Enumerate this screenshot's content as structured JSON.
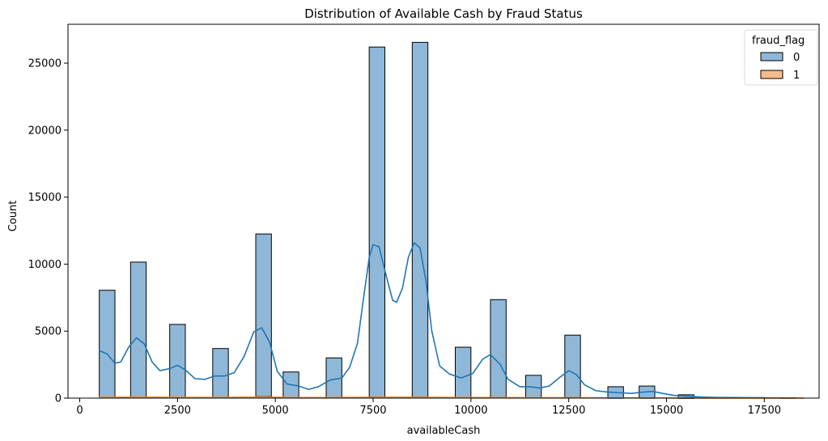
{
  "chart_data": {
    "type": "bar",
    "title": "Distribution of Available Cash by Fraud Status",
    "xlabel": "availableCash",
    "ylabel": "Count",
    "xlim": [
      -300,
      18900
    ],
    "ylim": [
      0,
      27900
    ],
    "xticks": [
      0,
      2500,
      5000,
      7500,
      10000,
      12500,
      15000,
      17500
    ],
    "yticks": [
      0,
      5000,
      10000,
      15000,
      20000,
      25000
    ],
    "bin_width": 400,
    "legend": {
      "title": "fraud_flag",
      "position": "top-right",
      "entries": [
        "0",
        "1"
      ]
    },
    "series": [
      {
        "name": "0",
        "color": "#8fb8d8",
        "edge_color": "#000000",
        "kde_color": "#1f77b4",
        "bins": [
          {
            "start": 500,
            "end": 900,
            "count": 8050
          },
          {
            "start": 1300,
            "end": 1700,
            "count": 10150
          },
          {
            "start": 2300,
            "end": 2700,
            "count": 5500
          },
          {
            "start": 3400,
            "end": 3800,
            "count": 3700
          },
          {
            "start": 4500,
            "end": 4900,
            "count": 12250
          },
          {
            "start": 5200,
            "end": 5600,
            "count": 1950
          },
          {
            "start": 6300,
            "end": 6700,
            "count": 3000
          },
          {
            "start": 7400,
            "end": 7800,
            "count": 26200
          },
          {
            "start": 8500,
            "end": 8900,
            "count": 26550
          },
          {
            "start": 9600,
            "end": 10000,
            "count": 3800
          },
          {
            "start": 10500,
            "end": 10900,
            "count": 7350
          },
          {
            "start": 11400,
            "end": 11800,
            "count": 1700
          },
          {
            "start": 12400,
            "end": 12800,
            "count": 4700
          },
          {
            "start": 13500,
            "end": 13900,
            "count": 850
          },
          {
            "start": 14300,
            "end": 14700,
            "count": 900
          },
          {
            "start": 15300,
            "end": 15700,
            "count": 250
          },
          {
            "start": 16100,
            "end": 16500,
            "count": 30
          },
          {
            "start": 17100,
            "end": 17500,
            "count": 40
          },
          {
            "start": 17900,
            "end": 18300,
            "count": 20
          }
        ],
        "kde": [
          [
            500,
            3550
          ],
          [
            700,
            3300
          ],
          [
            900,
            2600
          ],
          [
            1050,
            2700
          ],
          [
            1250,
            3800
          ],
          [
            1450,
            4500
          ],
          [
            1650,
            4050
          ],
          [
            1850,
            2700
          ],
          [
            2050,
            2050
          ],
          [
            2300,
            2200
          ],
          [
            2500,
            2450
          ],
          [
            2700,
            2100
          ],
          [
            2950,
            1450
          ],
          [
            3200,
            1400
          ],
          [
            3450,
            1650
          ],
          [
            3700,
            1650
          ],
          [
            3950,
            1900
          ],
          [
            4200,
            3100
          ],
          [
            4450,
            4950
          ],
          [
            4650,
            5250
          ],
          [
            4850,
            4200
          ],
          [
            5050,
            2000
          ],
          [
            5300,
            1050
          ],
          [
            5600,
            900
          ],
          [
            5850,
            650
          ],
          [
            6100,
            850
          ],
          [
            6400,
            1350
          ],
          [
            6700,
            1500
          ],
          [
            6900,
            2300
          ],
          [
            7100,
            4100
          ],
          [
            7250,
            7350
          ],
          [
            7400,
            10500
          ],
          [
            7500,
            11450
          ],
          [
            7650,
            11300
          ],
          [
            7850,
            8950
          ],
          [
            8000,
            7300
          ],
          [
            8100,
            7150
          ],
          [
            8250,
            8200
          ],
          [
            8400,
            10500
          ],
          [
            8550,
            11600
          ],
          [
            8700,
            11200
          ],
          [
            8850,
            8750
          ],
          [
            9000,
            5000
          ],
          [
            9200,
            2400
          ],
          [
            9450,
            1800
          ],
          [
            9750,
            1500
          ],
          [
            10050,
            1850
          ],
          [
            10300,
            2900
          ],
          [
            10500,
            3250
          ],
          [
            10750,
            2500
          ],
          [
            10950,
            1400
          ],
          [
            11250,
            850
          ],
          [
            11500,
            850
          ],
          [
            11750,
            750
          ],
          [
            12000,
            900
          ],
          [
            12250,
            1500
          ],
          [
            12500,
            2050
          ],
          [
            12700,
            1750
          ],
          [
            12900,
            1000
          ],
          [
            13200,
            550
          ],
          [
            13500,
            450
          ],
          [
            13800,
            400
          ],
          [
            14100,
            350
          ],
          [
            14400,
            450
          ],
          [
            14650,
            500
          ],
          [
            14900,
            350
          ],
          [
            15200,
            200
          ],
          [
            15500,
            150
          ],
          [
            15900,
            80
          ],
          [
            16300,
            50
          ],
          [
            16800,
            40
          ],
          [
            17300,
            30
          ],
          [
            17800,
            20
          ],
          [
            18300,
            10
          ]
        ]
      },
      {
        "name": "1",
        "color": "#f7bb8c",
        "edge_color": "#000000",
        "kde_color": "#ff7f0e",
        "bins": [
          {
            "start": 500,
            "end": 900,
            "count": 60
          },
          {
            "start": 1300,
            "end": 1700,
            "count": 80
          },
          {
            "start": 2300,
            "end": 2700,
            "count": 60
          },
          {
            "start": 3400,
            "end": 3800,
            "count": 50
          },
          {
            "start": 4500,
            "end": 4900,
            "count": 110
          },
          {
            "start": 5200,
            "end": 5600,
            "count": 40
          },
          {
            "start": 6300,
            "end": 6700,
            "count": 50
          },
          {
            "start": 7400,
            "end": 7800,
            "count": 80
          },
          {
            "start": 8500,
            "end": 8900,
            "count": 80
          },
          {
            "start": 9600,
            "end": 10000,
            "count": 40
          },
          {
            "start": 10500,
            "end": 10900,
            "count": 50
          },
          {
            "start": 11400,
            "end": 11800,
            "count": 30
          },
          {
            "start": 12400,
            "end": 12800,
            "count": 40
          },
          {
            "start": 13500,
            "end": 13900,
            "count": 20
          },
          {
            "start": 14300,
            "end": 14700,
            "count": 20
          },
          {
            "start": 15300,
            "end": 15700,
            "count": 10
          }
        ],
        "kde": [
          [
            500,
            60
          ],
          [
            1500,
            70
          ],
          [
            2500,
            55
          ],
          [
            3500,
            50
          ],
          [
            4700,
            80
          ],
          [
            5500,
            40
          ],
          [
            6500,
            45
          ],
          [
            7600,
            65
          ],
          [
            8700,
            65
          ],
          [
            9800,
            40
          ],
          [
            10700,
            45
          ],
          [
            11600,
            30
          ],
          [
            12600,
            35
          ],
          [
            13700,
            20
          ],
          [
            14500,
            20
          ],
          [
            15500,
            10
          ],
          [
            16500,
            5
          ],
          [
            17500,
            3
          ],
          [
            18500,
            2
          ]
        ]
      }
    ]
  }
}
